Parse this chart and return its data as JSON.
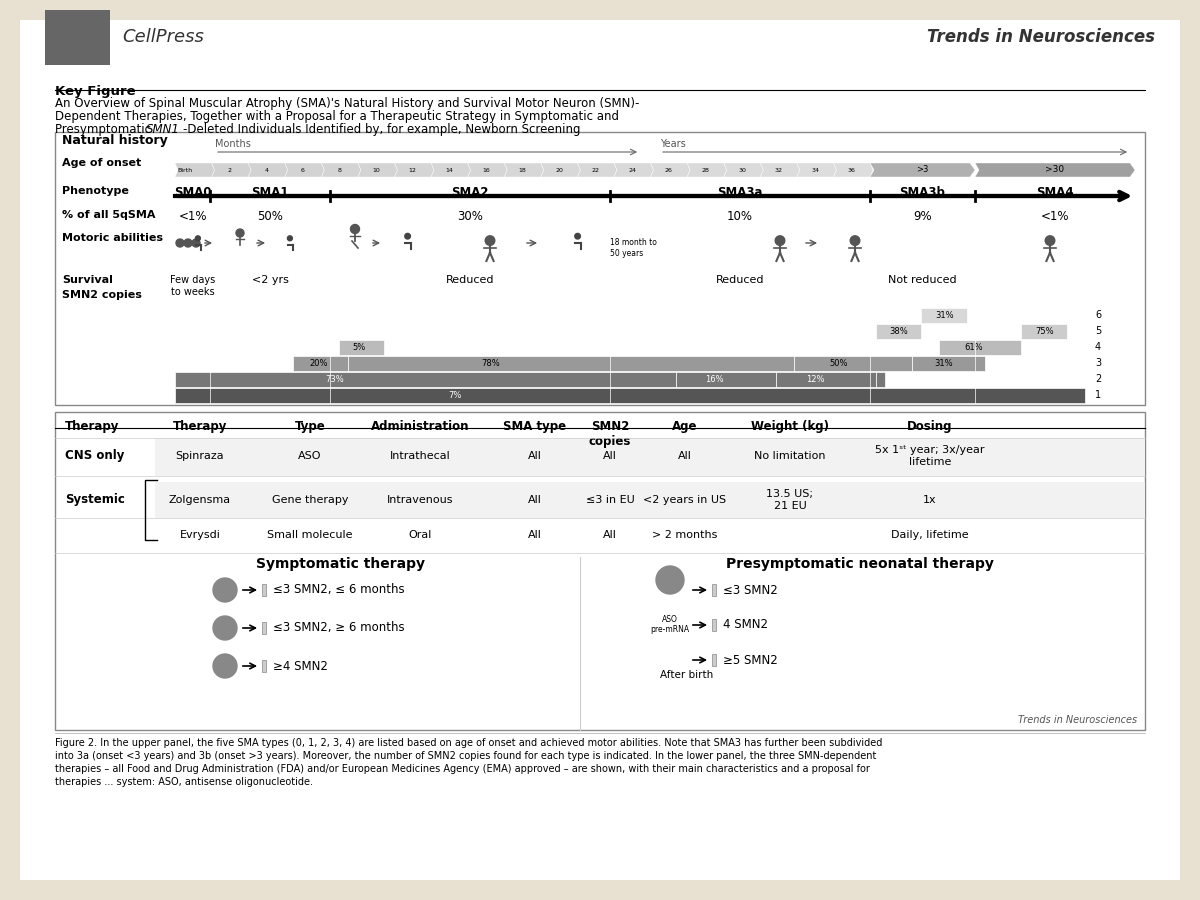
{
  "bg_color": "#e8e0d0",
  "paper_bg": "#ffffff",
  "title_header": "Key Figure",
  "title_main_line1": "An Overview of Spinal Muscular Atrophy (SMA)'s Natural History and Survival Motor Neuron (SMN)-",
  "title_main_line2": "Dependent Therapies, Together with a Proposal for a Therapeutic Strategy in Symptomatic and",
  "title_main_line3": "Presymptomatic SMN1-Deleted Individuals Identified by, for example, Newborn Screening",
  "journal_name": "Trends in Neurosciences",
  "publisher": "CellPress",
  "natural_history_label": "Natural history",
  "age_label": "Age of onset",
  "phenotype_label": "Phenotype",
  "percent_label": "% of all 5qSMA",
  "motoric_label": "Motoric abilities",
  "survival_label": "Survival",
  "smn2_label": "SMN2 copies",
  "caption_line1": "Figure 2. In the upper panel, the five SMA types (0, 1, 2, 3, 4) are listed based on age of onset and achieved motor abilities. Note that SMA3 has further been subdivided",
  "caption_line2": "into 3a (onset <3 years) and 3b (onset >3 years). Moreover, the number of SMN2 copies found for each type is indicated. In the lower panel, the three SMN-dependent",
  "caption_line3": "therapies – all Food and Drug Administration (FDA) and/or European Medicines Agency (EMA) approved – are shown, with their main characteristics and a proposal for",
  "caption_line4": "therapies ... system: ASO, antisense oligonucleotide."
}
